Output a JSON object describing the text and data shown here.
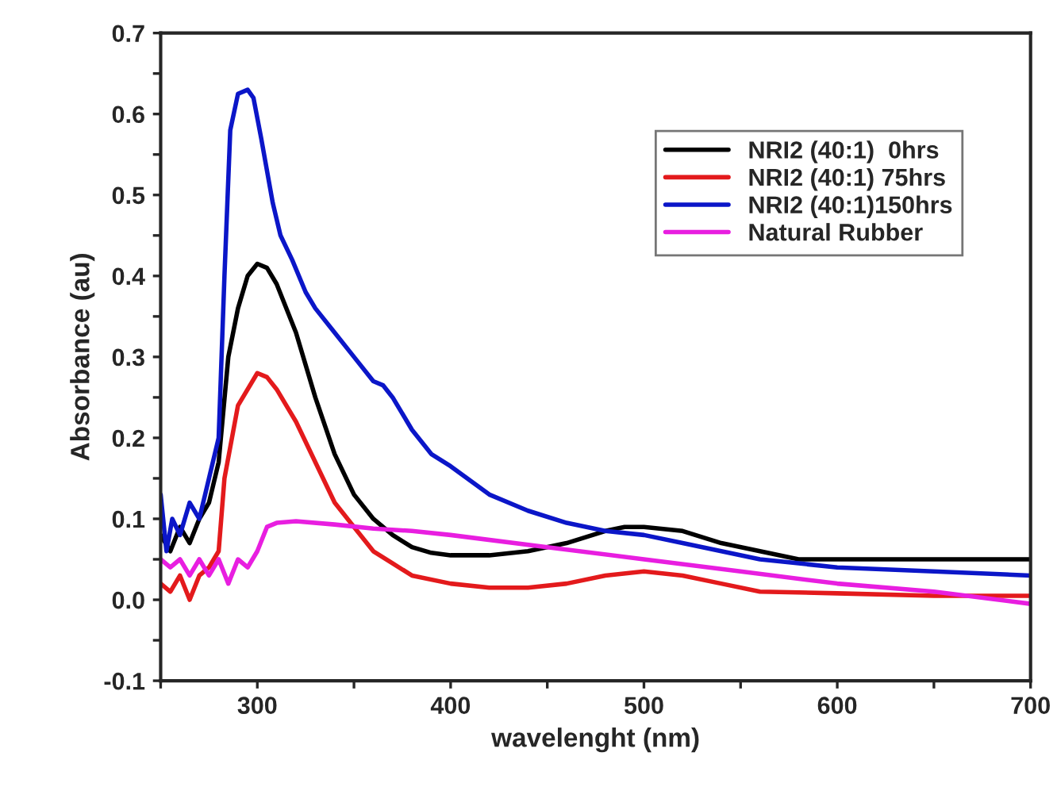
{
  "chart_data": {
    "type": "line",
    "xlabel": "wavelenght (nm)",
    "ylabel": "Absorbance (au)",
    "xlim": [
      250,
      700
    ],
    "ylim": [
      -0.1,
      0.7
    ],
    "xticks": [
      {
        "value": 250,
        "label": null
      },
      300,
      {
        "value": 350,
        "label": null
      },
      400,
      {
        "value": 450,
        "label": null
      },
      500,
      {
        "value": 550,
        "label": null
      },
      600,
      {
        "value": 650,
        "label": null
      },
      700
    ],
    "yticks": [
      -0.1,
      {
        "value": -0.05,
        "label": null
      },
      {
        "value": 0,
        "label": "0.0"
      },
      {
        "value": 0.05,
        "label": null
      },
      0.1,
      {
        "value": 0.15,
        "label": null
      },
      0.2,
      {
        "value": 0.25,
        "label": null
      },
      0.3,
      {
        "value": 0.35,
        "label": null
      },
      0.4,
      {
        "value": 0.45,
        "label": null
      },
      0.5,
      {
        "value": 0.55,
        "label": null
      },
      0.6,
      {
        "value": 0.65,
        "label": null
      },
      0.7
    ],
    "grid": false,
    "legend": "top right",
    "marker": "none",
    "line_style": "solid",
    "series": [
      {
        "name": "NRI2 (40:1)  0hrs",
        "color": "#000000",
        "x": [
          250,
          255,
          260,
          265,
          270,
          275,
          280,
          285,
          290,
          295,
          300,
          305,
          310,
          320,
          330,
          340,
          350,
          360,
          370,
          380,
          390,
          400,
          420,
          440,
          460,
          480,
          490,
          500,
          520,
          540,
          560,
          580,
          600,
          650,
          700
        ],
        "values": [
          0.08,
          0.06,
          0.09,
          0.07,
          0.1,
          0.12,
          0.17,
          0.3,
          0.36,
          0.4,
          0.415,
          0.41,
          0.39,
          0.33,
          0.25,
          0.18,
          0.13,
          0.1,
          0.08,
          0.065,
          0.058,
          0.055,
          0.055,
          0.06,
          0.07,
          0.085,
          0.09,
          0.09,
          0.085,
          0.07,
          0.06,
          0.05,
          0.05,
          0.05,
          0.05
        ]
      },
      {
        "name": "NRI2 (40:1) 75hrs",
        "color": "#e31a1c",
        "x": [
          250,
          255,
          260,
          265,
          270,
          275,
          280,
          283,
          290,
          300,
          305,
          310,
          320,
          330,
          340,
          350,
          360,
          370,
          380,
          400,
          420,
          440,
          460,
          480,
          500,
          520,
          540,
          560,
          600,
          650,
          700
        ],
        "values": [
          0.02,
          0.01,
          0.03,
          0.0,
          0.03,
          0.04,
          0.06,
          0.15,
          0.24,
          0.28,
          0.275,
          0.26,
          0.22,
          0.17,
          0.12,
          0.09,
          0.06,
          0.045,
          0.03,
          0.02,
          0.015,
          0.015,
          0.02,
          0.03,
          0.035,
          0.03,
          0.02,
          0.01,
          0.008,
          0.005,
          0.005
        ]
      },
      {
        "name": "NRI2 (40:1)150hrs",
        "color": "#0b16c8",
        "x": [
          250,
          253,
          256,
          260,
          265,
          270,
          275,
          280,
          283,
          286,
          290,
          295,
          298,
          302,
          308,
          312,
          318,
          325,
          330,
          340,
          350,
          360,
          365,
          370,
          380,
          390,
          400,
          420,
          440,
          460,
          480,
          500,
          520,
          540,
          560,
          580,
          600,
          650,
          700
        ],
        "values": [
          0.13,
          0.06,
          0.1,
          0.08,
          0.12,
          0.1,
          0.15,
          0.2,
          0.4,
          0.58,
          0.625,
          0.63,
          0.62,
          0.57,
          0.49,
          0.45,
          0.42,
          0.38,
          0.36,
          0.33,
          0.3,
          0.27,
          0.265,
          0.25,
          0.21,
          0.18,
          0.165,
          0.13,
          0.11,
          0.095,
          0.085,
          0.08,
          0.07,
          0.06,
          0.05,
          0.045,
          0.04,
          0.035,
          0.03
        ]
      },
      {
        "name": "Natural Rubber",
        "color": "#e81ee0",
        "x": [
          250,
          255,
          260,
          265,
          270,
          275,
          280,
          285,
          290,
          295,
          300,
          305,
          310,
          320,
          340,
          360,
          380,
          400,
          450,
          500,
          550,
          600,
          650,
          700
        ],
        "values": [
          0.05,
          0.04,
          0.05,
          0.03,
          0.05,
          0.03,
          0.05,
          0.02,
          0.05,
          0.04,
          0.06,
          0.09,
          0.095,
          0.097,
          0.093,
          0.088,
          0.085,
          0.08,
          0.065,
          0.05,
          0.035,
          0.02,
          0.01,
          -0.005
        ]
      }
    ]
  }
}
